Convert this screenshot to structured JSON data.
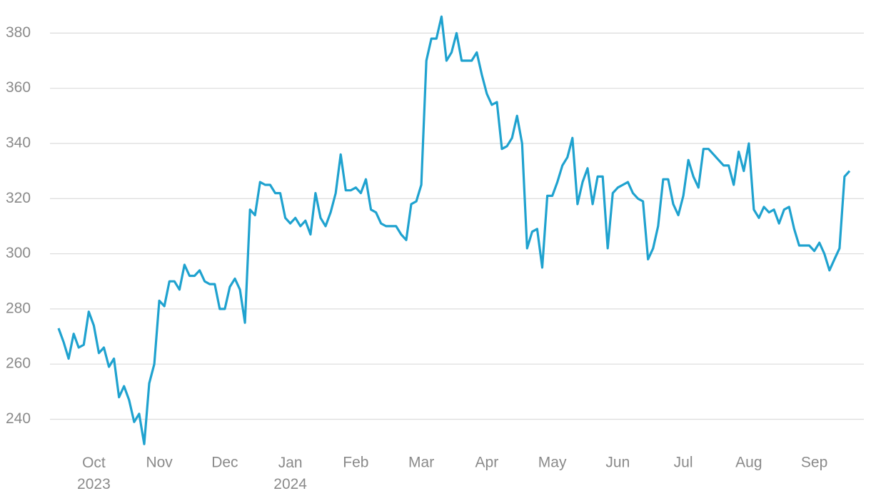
{
  "chart_data": {
    "type": "line",
    "xlim": [
      0,
      157
    ],
    "xticks": [
      {
        "value": 7,
        "label": "Oct 2023"
      },
      {
        "value": 20,
        "label": "Nov"
      },
      {
        "value": 33,
        "label": "Dec"
      },
      {
        "value": 46,
        "label": "Jan 2024"
      },
      {
        "value": 59,
        "label": "Feb"
      },
      {
        "value": 72,
        "label": "Mar"
      },
      {
        "value": 85,
        "label": "Apr"
      },
      {
        "value": 98,
        "label": "May"
      },
      {
        "value": 111,
        "label": "Jun"
      },
      {
        "value": 124,
        "label": "Jul"
      },
      {
        "value": 137,
        "label": "Aug"
      },
      {
        "value": 150,
        "label": "Sep"
      }
    ],
    "ylim": [
      229,
      392
    ],
    "yticks": [
      240,
      260,
      280,
      300,
      320,
      340,
      360,
      380
    ],
    "grid": true,
    "series": [
      {
        "color": "#1fa2cf",
        "values": [
          273,
          268,
          262,
          271,
          266,
          267,
          279,
          274,
          264,
          266,
          259,
          262,
          248,
          252,
          247,
          239,
          242,
          231,
          253,
          260,
          283,
          281,
          290,
          290,
          287,
          296,
          292,
          292,
          294,
          290,
          289,
          289,
          280,
          280,
          288,
          291,
          287,
          275,
          316,
          314,
          326,
          325,
          325,
          322,
          322,
          313,
          311,
          313,
          310,
          312,
          307,
          322,
          313,
          310,
          315,
          322,
          336,
          323,
          323,
          324,
          322,
          327,
          316,
          315,
          311,
          310,
          310,
          310,
          307,
          305,
          318,
          319,
          325,
          370,
          378,
          378,
          386,
          370,
          373,
          380,
          370,
          370,
          370,
          373,
          365,
          358,
          354,
          355,
          338,
          339,
          342,
          350,
          340,
          302,
          308,
          309,
          295,
          321,
          321,
          326,
          332,
          335,
          342,
          318,
          326,
          331,
          318,
          328,
          328,
          302,
          322,
          324,
          325,
          326,
          322,
          320,
          319,
          298,
          302,
          310,
          327,
          327,
          318,
          314,
          321,
          334,
          328,
          324,
          338,
          338,
          336,
          334,
          332,
          332,
          325,
          337,
          330,
          340,
          316,
          313,
          317,
          315,
          316,
          311,
          316,
          317,
          309,
          303,
          303,
          303,
          301,
          304,
          300,
          294,
          298,
          302,
          328,
          330
        ]
      }
    ]
  }
}
